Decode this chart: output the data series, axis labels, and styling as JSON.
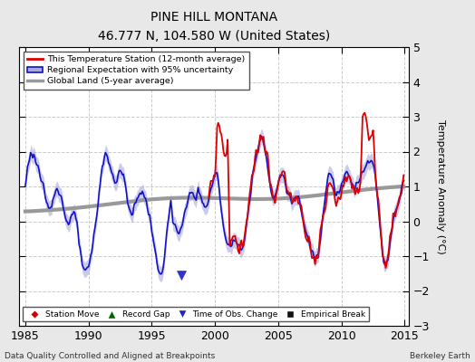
{
  "title": "PINE HILL MONTANA",
  "subtitle": "46.777 N, 104.580 W (United States)",
  "xlabel_left": "Data Quality Controlled and Aligned at Breakpoints",
  "xlabel_right": "Berkeley Earth",
  "ylabel": "Temperature Anomaly (°C)",
  "xlim": [
    1984.5,
    2015.3
  ],
  "ylim": [
    -3,
    5
  ],
  "yticks": [
    -3,
    -2,
    -1,
    0,
    1,
    2,
    3,
    4,
    5
  ],
  "xticks": [
    1985,
    1990,
    1995,
    2000,
    2005,
    2010,
    2015
  ],
  "legend_station": "This Temperature Station (12-month average)",
  "legend_regional": "Regional Expectation with 95% uncertainty",
  "legend_global": "Global Land (5-year average)",
  "marker_labels": [
    "Station Move",
    "Record Gap",
    "Time of Obs. Change",
    "Empirical Break"
  ],
  "time_obs_change_year": 1997.3,
  "time_obs_change_value": -1.55,
  "background_color": "#e8e8e8",
  "plot_bg_color": "#ffffff",
  "grid_color": "#cccccc",
  "red_line_color": "#dd0000",
  "blue_line_color": "#1111cc",
  "blue_fill_color": "#aaaadd",
  "gray_line_color": "#999999",
  "station_start_year": 1999.5
}
